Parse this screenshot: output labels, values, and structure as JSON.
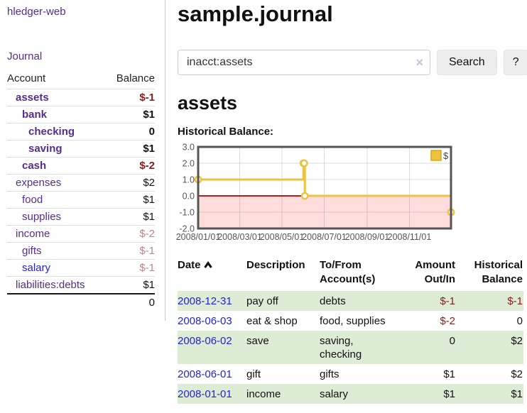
{
  "app": {
    "brand": "hledger-web"
  },
  "sidebar": {
    "nav": [
      {
        "label": "Journal"
      }
    ],
    "accounts_table": {
      "headers": {
        "account": "Account",
        "balance": "Balance"
      },
      "rows": [
        {
          "name": "assets",
          "depth": 1,
          "balance": "$-1",
          "bold": true,
          "balance_style": "negative"
        },
        {
          "name": "bank",
          "depth": 2,
          "balance": "$1",
          "bold": true,
          "balance_style": "normal"
        },
        {
          "name": "checking",
          "depth": 3,
          "balance": "0",
          "bold": true,
          "balance_style": "normal"
        },
        {
          "name": "saving",
          "depth": 3,
          "balance": "$1",
          "bold": true,
          "balance_style": "normal"
        },
        {
          "name": "cash",
          "depth": 2,
          "balance": "$-2",
          "bold": true,
          "balance_style": "negative"
        },
        {
          "name": "expenses",
          "depth": 1,
          "balance": "$2",
          "bold": false,
          "balance_style": "normal"
        },
        {
          "name": "food",
          "depth": 2,
          "balance": "$1",
          "bold": false,
          "balance_style": "normal"
        },
        {
          "name": "supplies",
          "depth": 2,
          "balance": "$1",
          "bold": false,
          "balance_style": "normal"
        },
        {
          "name": "income",
          "depth": 1,
          "balance": "$-2",
          "bold": false,
          "balance_style": "negative-soft"
        },
        {
          "name": "gifts",
          "depth": 2,
          "balance": "$-1",
          "bold": false,
          "balance_style": "negative-soft"
        },
        {
          "name": "salary",
          "depth": 2,
          "balance": "$-1",
          "bold": false,
          "balance_style": "negative-soft",
          "link_style": "blue"
        },
        {
          "name": "liabilities:debts",
          "depth": 1,
          "balance": "$1",
          "bold": false,
          "balance_style": "normal"
        }
      ],
      "total": "0"
    }
  },
  "header": {
    "title": "sample.journal"
  },
  "search": {
    "value": "inacct:assets",
    "clear_icon": "×",
    "search_button": "Search",
    "help_button": "?"
  },
  "account_page": {
    "heading": "assets",
    "chart_label": "Historical Balance:"
  },
  "chart_data": {
    "type": "line",
    "step": true,
    "title": "Historical Balance:",
    "series": [
      {
        "name": "$",
        "color": "#edc240",
        "points": [
          [
            "2008-01-01",
            1
          ],
          [
            "2008-06-01",
            2
          ],
          [
            "2008-06-02",
            2
          ],
          [
            "2008-06-03",
            0
          ],
          [
            "2008-12-31",
            -1
          ]
        ]
      }
    ],
    "x_range": [
      "2008-01-01",
      "2008-12-31"
    ],
    "ylim": [
      -2,
      3
    ],
    "y_ticks": [
      3,
      2,
      1,
      0,
      -1,
      -2
    ],
    "x_ticks": [
      "2008/01/01",
      "2008/03/01",
      "2008/05/01",
      "2008/07/01",
      "2008/09/01",
      "2008/11/01"
    ],
    "grid": true,
    "legend_position": "top-right",
    "negative_region_color": "#ffdddd",
    "zero_line_color": "#aa0000",
    "plot_border_color": "#545454"
  },
  "register": {
    "headers": {
      "date": "Date",
      "description": "Description",
      "accounts": "To/From Account(s)",
      "amount": "Amount Out/In",
      "balance": "Historical Balance"
    },
    "rows": [
      {
        "date": "2008-12-31",
        "description": "pay off",
        "accounts": "debts",
        "amount": "$-1",
        "amount_negative": true,
        "balance": "$-1",
        "balance_negative": true
      },
      {
        "date": "2008-06-03",
        "description": "eat & shop",
        "accounts": "food, supplies",
        "amount": "$-2",
        "amount_negative": true,
        "balance": "0",
        "balance_negative": false
      },
      {
        "date": "2008-06-02",
        "description": "save",
        "accounts": "saving, checking",
        "amount": "0",
        "amount_negative": false,
        "balance": "$2",
        "balance_negative": false
      },
      {
        "date": "2008-06-01",
        "description": "gift",
        "accounts": "gifts",
        "amount": "$1",
        "amount_negative": false,
        "balance": "$2",
        "balance_negative": false
      },
      {
        "date": "2008-01-01",
        "description": "income",
        "accounts": "salary",
        "amount": "$1",
        "amount_negative": false,
        "balance": "$1",
        "balance_negative": false
      }
    ]
  },
  "colors": {
    "link_purple": "#552d90",
    "link_blue": "#2222dd",
    "negative_strong": "#8b1c1c",
    "negative_soft": "#c08585",
    "row_stripe_green": "#ddecd4",
    "series_yellow": "#edc240"
  }
}
